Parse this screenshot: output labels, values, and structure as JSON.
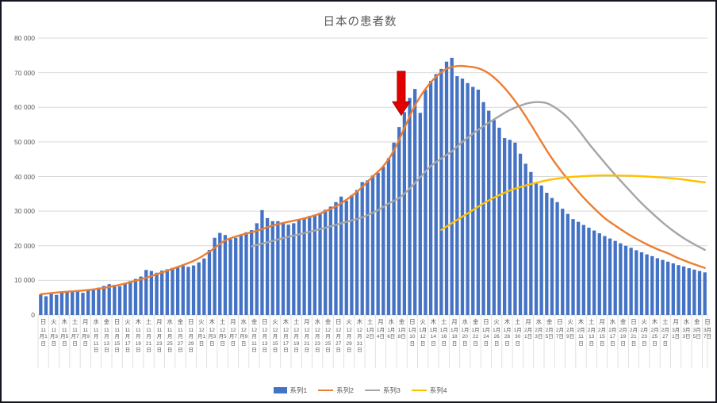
{
  "chart": {
    "title": "日本の患者数",
    "colors": {
      "bar": "#4472C4",
      "line2": "#ED7D31",
      "line3": "#A5A5A5",
      "line4": "#FFC000",
      "grid": "#D9D9D9",
      "axis": "#D9D9D9",
      "text": "#595959",
      "arrow": "#E30000",
      "arrow_edge": "#A50000",
      "border": "#15151f"
    },
    "y_axis": {
      "labels": [
        "0",
        "10 000",
        "20 000",
        "30 000",
        "40 000",
        "50 000",
        "60 000",
        "70 000",
        "80 000"
      ]
    },
    "x_axis": {
      "tick_labels": [
        {
          "w": "日",
          "t": [
            "11",
            "月1",
            "日"
          ]
        },
        {
          "w": "火",
          "t": [
            "11",
            "月3",
            "日"
          ]
        },
        {
          "w": "木",
          "t": [
            "11",
            "月5",
            "日"
          ]
        },
        {
          "w": "土",
          "t": [
            "11",
            "月7",
            "日"
          ]
        },
        {
          "w": "月",
          "t": [
            "11",
            "月9",
            "日"
          ]
        },
        {
          "w": "水",
          "t": [
            "11",
            "月",
            "11",
            "日"
          ]
        },
        {
          "w": "金",
          "t": [
            "11",
            "月",
            "13",
            "日"
          ]
        },
        {
          "w": "日",
          "t": [
            "11",
            "月",
            "15",
            "日"
          ]
        },
        {
          "w": "火",
          "t": [
            "11",
            "月",
            "17",
            "日"
          ]
        },
        {
          "w": "木",
          "t": [
            "11",
            "月",
            "19",
            "日"
          ]
        },
        {
          "w": "土",
          "t": [
            "11",
            "月",
            "21",
            "日"
          ]
        },
        {
          "w": "月",
          "t": [
            "11",
            "月",
            "23",
            "日"
          ]
        },
        {
          "w": "水",
          "t": [
            "11",
            "月",
            "25",
            "日"
          ]
        },
        {
          "w": "金",
          "t": [
            "11",
            "月",
            "27",
            "日"
          ]
        },
        {
          "w": "日",
          "t": [
            "11",
            "月",
            "29",
            "日"
          ]
        },
        {
          "w": "火",
          "t": [
            "12",
            "月1",
            "日"
          ]
        },
        {
          "w": "木",
          "t": [
            "12",
            "月3",
            "日"
          ]
        },
        {
          "w": "土",
          "t": [
            "12",
            "月5",
            "日"
          ]
        },
        {
          "w": "月",
          "t": [
            "12",
            "月7",
            "日"
          ]
        },
        {
          "w": "水",
          "t": [
            "12",
            "月9",
            "日"
          ]
        },
        {
          "w": "金",
          "t": [
            "12",
            "月",
            "11",
            "日"
          ]
        },
        {
          "w": "日",
          "t": [
            "12",
            "月",
            "13",
            "日"
          ]
        },
        {
          "w": "火",
          "t": [
            "12",
            "月",
            "15",
            "日"
          ]
        },
        {
          "w": "木",
          "t": [
            "12",
            "月",
            "17",
            "日"
          ]
        },
        {
          "w": "土",
          "t": [
            "12",
            "月",
            "19",
            "日"
          ]
        },
        {
          "w": "月",
          "t": [
            "12",
            "月",
            "21",
            "日"
          ]
        },
        {
          "w": "水",
          "t": [
            "12",
            "月",
            "23",
            "日"
          ]
        },
        {
          "w": "金",
          "t": [
            "12",
            "月",
            "25",
            "日"
          ]
        },
        {
          "w": "日",
          "t": [
            "12",
            "月",
            "27",
            "日"
          ]
        },
        {
          "w": "火",
          "t": [
            "12",
            "月",
            "29",
            "日"
          ]
        },
        {
          "w": "木",
          "t": [
            "12",
            "月",
            "31",
            "日"
          ]
        },
        {
          "w": "土",
          "t": [
            "1月",
            "2日"
          ]
        },
        {
          "w": "月",
          "t": [
            "1月",
            "4日"
          ]
        },
        {
          "w": "水",
          "t": [
            "1月",
            "6日"
          ]
        },
        {
          "w": "金",
          "t": [
            "1月",
            "8日"
          ]
        },
        {
          "w": "日",
          "t": [
            "1月",
            "10",
            "日"
          ]
        },
        {
          "w": "火",
          "t": [
            "1月",
            "12",
            "日"
          ]
        },
        {
          "w": "木",
          "t": [
            "1月",
            "14",
            "日"
          ]
        },
        {
          "w": "土",
          "t": [
            "1月",
            "16",
            "日"
          ]
        },
        {
          "w": "月",
          "t": [
            "1月",
            "18",
            "日"
          ]
        },
        {
          "w": "水",
          "t": [
            "1月",
            "20",
            "日"
          ]
        },
        {
          "w": "金",
          "t": [
            "1月",
            "22",
            "日"
          ]
        },
        {
          "w": "日",
          "t": [
            "1月",
            "24",
            "日"
          ]
        },
        {
          "w": "火",
          "t": [
            "1月",
            "26",
            "日"
          ]
        },
        {
          "w": "木",
          "t": [
            "1月",
            "28",
            "日"
          ]
        },
        {
          "w": "土",
          "t": [
            "1月",
            "30",
            "日"
          ]
        },
        {
          "w": "月",
          "t": [
            "2月",
            "1日"
          ]
        },
        {
          "w": "水",
          "t": [
            "2月",
            "3日"
          ]
        },
        {
          "w": "金",
          "t": [
            "2月",
            "5日"
          ]
        },
        {
          "w": "日",
          "t": [
            "2月",
            "7日"
          ]
        },
        {
          "w": "火",
          "t": [
            "2月",
            "9日"
          ]
        },
        {
          "w": "木",
          "t": [
            "2月",
            "11",
            "日"
          ]
        },
        {
          "w": "土",
          "t": [
            "2月",
            "13",
            "日"
          ]
        },
        {
          "w": "月",
          "t": [
            "2月",
            "15",
            "日"
          ]
        },
        {
          "w": "水",
          "t": [
            "2月",
            "17",
            "日"
          ]
        },
        {
          "w": "金",
          "t": [
            "2月",
            "19",
            "日"
          ]
        },
        {
          "w": "日",
          "t": [
            "2月",
            "21",
            "日"
          ]
        },
        {
          "w": "火",
          "t": [
            "2月",
            "23",
            "日"
          ]
        },
        {
          "w": "木",
          "t": [
            "2月",
            "25",
            "日"
          ]
        },
        {
          "w": "土",
          "t": [
            "2月",
            "27",
            "日"
          ]
        },
        {
          "w": "月",
          "t": [
            "3月",
            "1日"
          ]
        },
        {
          "w": "水",
          "t": [
            "3月",
            "3日"
          ]
        },
        {
          "w": "金",
          "t": [
            "3月",
            "5日"
          ]
        },
        {
          "w": "日",
          "t": [
            "3月",
            "7日"
          ]
        }
      ]
    }
  },
  "chart_data": {
    "type": "combo",
    "title": "日本の患者数",
    "x_frequency": "daily",
    "x_start_label": "11月1日",
    "x_end_label": "3月7日",
    "days_total": 127,
    "ylim": [
      0,
      80000
    ],
    "y_step": 10000,
    "grid": true,
    "legend_position": "bottom",
    "series": [
      {
        "name": "系列1",
        "type": "bar",
        "color": "#4472C4",
        "values": [
          5900,
          5400,
          6100,
          5800,
          6400,
          6700,
          7000,
          6800,
          6400,
          7100,
          7500,
          7900,
          8400,
          8900,
          8700,
          8300,
          9200,
          9800,
          10400,
          11100,
          13000,
          12700,
          12200,
          12800,
          13200,
          13600,
          13900,
          14200,
          13900,
          14300,
          15200,
          16300,
          18800,
          22300,
          23700,
          23100,
          21900,
          22300,
          23200,
          23900,
          24500,
          26500,
          30300,
          28000,
          27100,
          27100,
          26800,
          26100,
          26500,
          27500,
          27800,
          28600,
          29000,
          29500,
          30400,
          31300,
          32600,
          34200,
          33000,
          34600,
          36100,
          38400,
          38900,
          40300,
          41100,
          42800,
          45300,
          49800,
          54300,
          58600,
          62700,
          65300,
          58400,
          65100,
          67600,
          69600,
          71100,
          73200,
          74300,
          69000,
          68300,
          67000,
          65900,
          65100,
          61500,
          59000,
          56300,
          54100,
          51100,
          50600,
          49800,
          46600,
          43700,
          41300,
          38400,
          37400,
          35300,
          33800,
          32600,
          30700,
          29200,
          27700,
          26900,
          26000,
          25200,
          24400,
          23600,
          22800,
          22100,
          21400,
          20700,
          20000,
          19400,
          18700,
          18100,
          17500,
          17000,
          16400,
          15900,
          15400,
          14900,
          14400,
          14000,
          13500,
          13100,
          12700,
          12300
        ]
      },
      {
        "name": "系列2",
        "type": "line",
        "color": "#ED7D31",
        "points": [
          [
            0,
            6000
          ],
          [
            4,
            6600
          ],
          [
            9,
            7200
          ],
          [
            14,
            8400
          ],
          [
            19,
            10300
          ],
          [
            24,
            12800
          ],
          [
            29,
            15600
          ],
          [
            32,
            18300
          ],
          [
            35,
            21500
          ],
          [
            38,
            23100
          ],
          [
            41,
            24300
          ],
          [
            44,
            25800
          ],
          [
            47,
            26900
          ],
          [
            50,
            27900
          ],
          [
            53,
            29300
          ],
          [
            56,
            31400
          ],
          [
            58,
            33300
          ],
          [
            60,
            35600
          ],
          [
            61,
            37000
          ],
          [
            63,
            40000
          ],
          [
            65,
            43000
          ],
          [
            67,
            47500
          ],
          [
            69,
            54000
          ],
          [
            71,
            60500
          ],
          [
            73,
            65300
          ],
          [
            75,
            68800
          ],
          [
            77,
            71100
          ],
          [
            79,
            71900
          ],
          [
            81,
            71800
          ],
          [
            83,
            71300
          ],
          [
            85,
            69800
          ],
          [
            87,
            67200
          ],
          [
            89,
            63800
          ],
          [
            91,
            59700
          ],
          [
            93,
            55000
          ],
          [
            95,
            50000
          ],
          [
            97,
            45200
          ],
          [
            99,
            41100
          ],
          [
            101,
            37400
          ],
          [
            103,
            33900
          ],
          [
            105,
            30800
          ],
          [
            107,
            28000
          ],
          [
            109,
            25800
          ],
          [
            111,
            23800
          ],
          [
            113,
            22000
          ],
          [
            115,
            20400
          ],
          [
            117,
            19000
          ],
          [
            119,
            17800
          ],
          [
            121,
            16400
          ],
          [
            123,
            15200
          ],
          [
            125,
            14100
          ],
          [
            126,
            13600
          ]
        ]
      },
      {
        "name": "系列3",
        "type": "line",
        "color": "#A5A5A5",
        "points": [
          [
            40,
            19800
          ],
          [
            43,
            21000
          ],
          [
            46,
            22200
          ],
          [
            49,
            23300
          ],
          [
            52,
            24400
          ],
          [
            55,
            25600
          ],
          [
            58,
            26900
          ],
          [
            61,
            28200
          ],
          [
            64,
            30300
          ],
          [
            66,
            32200
          ],
          [
            68,
            33800
          ],
          [
            70,
            36500
          ],
          [
            72,
            39800
          ],
          [
            74,
            43000
          ],
          [
            76,
            45200
          ],
          [
            78,
            47300
          ],
          [
            80,
            50000
          ],
          [
            83,
            53500
          ],
          [
            86,
            56500
          ],
          [
            89,
            59200
          ],
          [
            92,
            61000
          ],
          [
            94,
            61500
          ],
          [
            96,
            61200
          ],
          [
            98,
            59500
          ],
          [
            100,
            57000
          ],
          [
            102,
            53500
          ],
          [
            104,
            49500
          ],
          [
            106,
            45800
          ],
          [
            108,
            42200
          ],
          [
            110,
            38800
          ],
          [
            112,
            35500
          ],
          [
            114,
            32300
          ],
          [
            116,
            29400
          ],
          [
            118,
            26700
          ],
          [
            120,
            24300
          ],
          [
            122,
            22200
          ],
          [
            124,
            20400
          ],
          [
            126,
            18800
          ]
        ]
      },
      {
        "name": "系列4",
        "type": "line",
        "color": "#FFC000",
        "points": [
          [
            76,
            24600
          ],
          [
            78,
            26500
          ],
          [
            80,
            28400
          ],
          [
            82,
            30300
          ],
          [
            84,
            32200
          ],
          [
            86,
            33900
          ],
          [
            88,
            35300
          ],
          [
            90,
            36500
          ],
          [
            92,
            37400
          ],
          [
            94,
            38200
          ],
          [
            96,
            38900
          ],
          [
            98,
            39400
          ],
          [
            100,
            39800
          ],
          [
            103,
            40100
          ],
          [
            106,
            40300
          ],
          [
            109,
            40300
          ],
          [
            112,
            40200
          ],
          [
            115,
            40000
          ],
          [
            118,
            39700
          ],
          [
            121,
            39300
          ],
          [
            123,
            38900
          ],
          [
            125,
            38500
          ],
          [
            126,
            38300
          ]
        ]
      }
    ],
    "annotation": {
      "type": "down-arrow",
      "color": "#E30000",
      "x_day": 68.4,
      "top_value": 70400,
      "tip_value": 57700
    }
  },
  "legend": {
    "items": [
      {
        "label": "系列1",
        "marker": "bar",
        "color": "#4472C4"
      },
      {
        "label": "系列2",
        "marker": "line",
        "color": "#ED7D31"
      },
      {
        "label": "系列3",
        "marker": "line",
        "color": "#A5A5A5"
      },
      {
        "label": "系列4",
        "marker": "line",
        "color": "#FFC000"
      }
    ]
  }
}
